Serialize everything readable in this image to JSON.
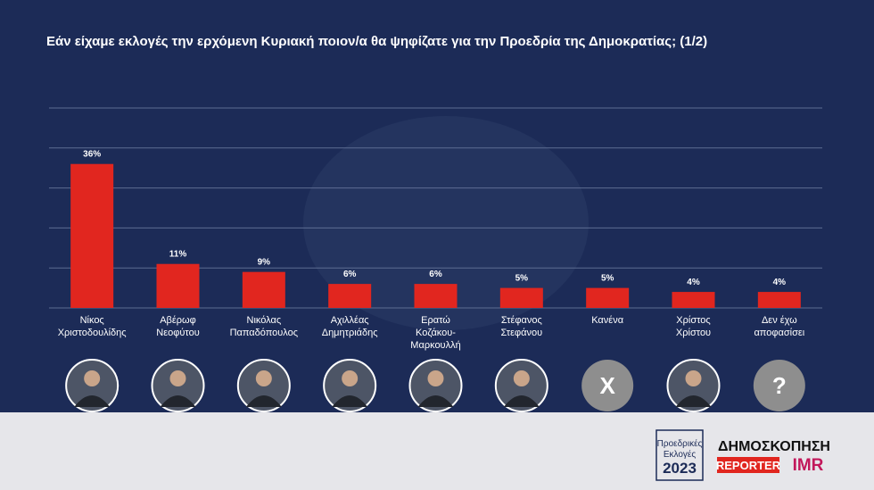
{
  "chart_data": {
    "type": "bar",
    "title": "Εάν είχαμε εκλογές την ερχόμενη Κυριακή ποιον/α θα ψηφίζατε για την Προεδρία της Δημοκρατίας; (1/2)",
    "categories": [
      "Νίκος\nΧριστοδουλίδης",
      "Αβέρωφ\nΝεοφύτου",
      "Νικόλας\nΠαπαδόπουλος",
      "Αχιλλέας\nΔημητριάδης",
      "Ερατώ\nΚοζάκου-\nΜαρκουλλή",
      "Στέφανος\nΣτεφάνου",
      "Κανένα",
      "Χρίστος\nΧρίστου",
      "Δεν έχω\nαποφασίσει"
    ],
    "values": [
      36,
      11,
      9,
      6,
      6,
      5,
      5,
      4,
      4
    ],
    "value_labels": [
      "36%",
      "11%",
      "9%",
      "6%",
      "6%",
      "5%",
      "5%",
      "4%",
      "4%"
    ],
    "color": "#e1261f",
    "ylim": [
      0,
      50
    ],
    "yticks": [
      0,
      10,
      20,
      30,
      40,
      50
    ],
    "grid": true
  },
  "avatars": {
    "none": "X",
    "undecided": "?"
  },
  "logo": {
    "line1": "Προεδρικές",
    "line2": "Εκλογές",
    "year": "2023"
  },
  "brand": {
    "survey": "ΔΗΜΟΣΚΟΠΗΣΗ",
    "reporter": "REPORTER",
    "imr": "IMR"
  }
}
